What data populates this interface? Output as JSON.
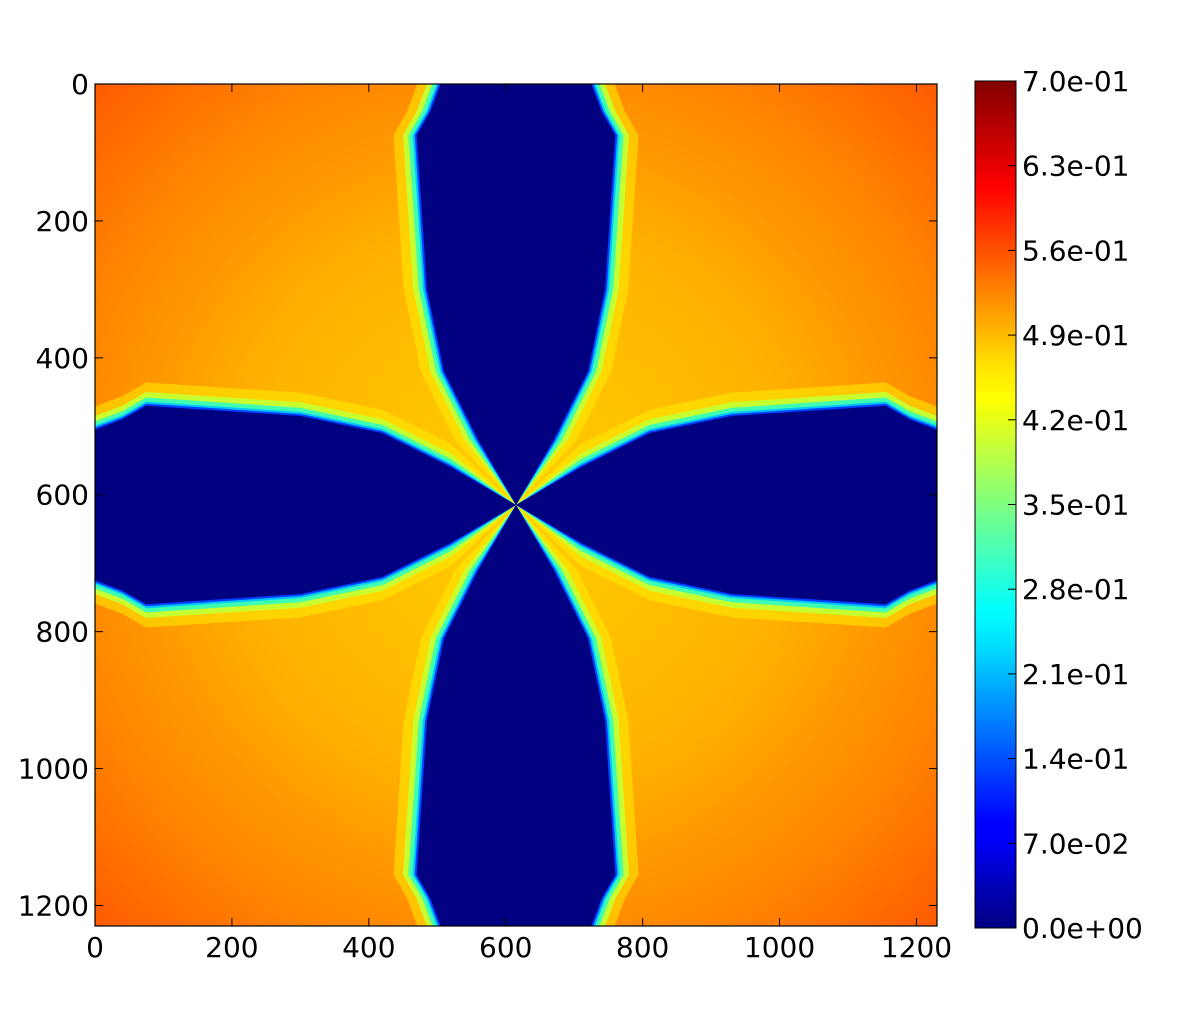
{
  "chart_data": {
    "type": "heatmap",
    "title": "",
    "xlabel": "",
    "ylabel": "",
    "xlim": [
      0,
      1230
    ],
    "ylim": [
      1230,
      0
    ],
    "x_ticks": [
      "0",
      "200",
      "400",
      "600",
      "800",
      "1000",
      "1200"
    ],
    "y_ticks": [
      "0",
      "200",
      "400",
      "600",
      "800",
      "1000",
      "1200"
    ],
    "colorbar": {
      "colormap": "jet",
      "range": [
        0.0,
        0.7
      ],
      "tick_labels": [
        "0.0e+00",
        "7.0e-02",
        "1.4e-01",
        "2.1e-01",
        "2.8e-01",
        "3.5e-01",
        "4.2e-01",
        "4.9e-01",
        "5.6e-01",
        "6.3e-01",
        "7.0e-01"
      ]
    },
    "field": {
      "description_values": {
        "background_edge": 0.58,
        "background_center": 0.48,
        "interface_min": 0.42,
        "cross_arms": 0.0
      },
      "center": [
        615,
        615
      ],
      "arm_outer_x": [
        500,
        730
      ],
      "arm_outer_y": [
        500,
        730
      ]
    },
    "colors": {
      "low": "#000080",
      "mid": "#ffff00",
      "high": "#800000"
    }
  }
}
